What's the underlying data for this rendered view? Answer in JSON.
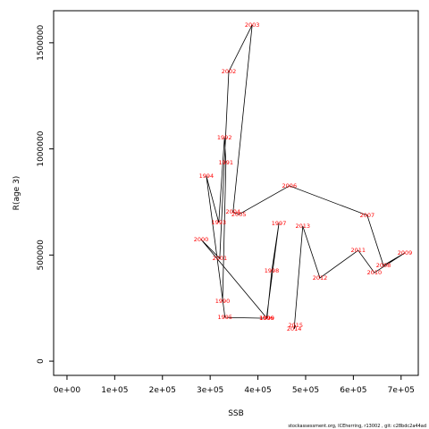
{
  "chart_data": {
    "type": "line",
    "xlabel": "SSB",
    "ylabel": "R(age 3)",
    "footer": "stockassessment.org, ICEherring, r13002 , git: c28bdc2a44ad",
    "labels": [
      "1990",
      "1991",
      "1992",
      "1993",
      "1994",
      "1995",
      "1996",
      "1997",
      "1998",
      "1999",
      "2000",
      "2001",
      "2002",
      "2003",
      "2004",
      "2005",
      "2006",
      "2007",
      "2008",
      "2009",
      "2010",
      "2011",
      "2012",
      "2013",
      "2014",
      "2015"
    ],
    "x": [
      326000,
      333000,
      330000,
      318000,
      292000,
      331000,
      418000,
      444000,
      429000,
      419000,
      281000,
      320000,
      339000,
      388000,
      348000,
      360000,
      466000,
      629000,
      663000,
      708000,
      644000,
      610000,
      530000,
      494000,
      476000,
      479000
    ],
    "values": [
      282000,
      935000,
      1053000,
      653000,
      872000,
      206000,
      202000,
      649000,
      425000,
      202000,
      573000,
      484000,
      1365000,
      1584000,
      703000,
      691000,
      826000,
      687000,
      451000,
      510000,
      417000,
      522000,
      392000,
      636000,
      152000,
      168000
    ],
    "line_color": "#000000",
    "label_color": "#ff0000",
    "xlim": [
      -28000,
      736000
    ],
    "ylim": [
      -67000,
      1651000
    ],
    "xticks": [
      {
        "value": 0,
        "label": "0e+00"
      },
      {
        "value": 100000,
        "label": "1e+05"
      },
      {
        "value": 200000,
        "label": "2e+05"
      },
      {
        "value": 300000,
        "label": "3e+05"
      },
      {
        "value": 400000,
        "label": "4e+05"
      },
      {
        "value": 500000,
        "label": "5e+05"
      },
      {
        "value": 600000,
        "label": "6e+05"
      },
      {
        "value": 700000,
        "label": "7e+05"
      }
    ],
    "yticks": [
      0,
      500000,
      1000000,
      1500000
    ]
  }
}
